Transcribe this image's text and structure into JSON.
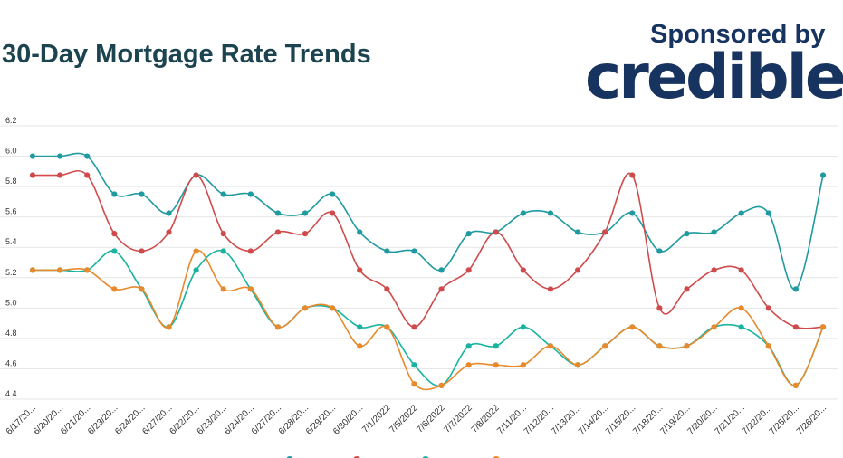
{
  "header": {
    "title": "30-Day Mortgage Rate Trends",
    "sponsor": "Sponsored by",
    "brand": "credible"
  },
  "chart_data": {
    "type": "line",
    "categories": [
      "6/17/20...",
      "6/20/20...",
      "6/21/20...",
      "6/23/20...",
      "6/24/20...",
      "6/27/20...",
      "6/22/20...",
      "6/23/20...",
      "6/24/20...",
      "6/27/20...",
      "6/28/20...",
      "6/29/20...",
      "6/30/20...",
      "7/1/2022",
      "7/5/2022",
      "7/6/2022",
      "7/7/2022",
      "7/8/2022",
      "7/11/20...",
      "7/12/20...",
      "7/13/20...",
      "7/14/20...",
      "7/15/20...",
      "7/18/20...",
      "7/19/20...",
      "7/20/20...",
      "7/21/20...",
      "7/22/20...",
      "7/25/20...",
      "7/26/20..."
    ],
    "ylim": [
      4.4,
      6.2
    ],
    "yticks": [
      "4.4",
      "4.6",
      "4.8",
      "5.0",
      "5.2",
      "5.4",
      "5.6",
      "5.8",
      "6.0",
      "6.2"
    ],
    "grid": true,
    "legend_position": "bottom",
    "series": [
      {
        "color": "#1f9aa0",
        "values": [
          6.0,
          6.0,
          6.0,
          5.75,
          5.75,
          5.625,
          5.875,
          5.75,
          5.75,
          5.625,
          5.625,
          5.75,
          5.5,
          5.375,
          5.375,
          5.25,
          5.49,
          5.5,
          5.625,
          5.625,
          5.5,
          5.5,
          5.625,
          5.375,
          5.49,
          5.5,
          5.625,
          5.625,
          5.125,
          5.875
        ]
      },
      {
        "color": "#cf4b4b",
        "values": [
          5.875,
          5.875,
          5.875,
          5.49,
          5.375,
          5.5,
          5.875,
          5.49,
          5.375,
          5.5,
          5.49,
          5.625,
          5.25,
          5.125,
          4.875,
          5.125,
          5.25,
          5.5,
          5.25,
          5.125,
          5.25,
          5.5,
          5.875,
          5.0,
          5.125,
          5.25,
          5.25,
          5.0,
          4.875,
          4.875
        ]
      },
      {
        "color": "#19b3a0",
        "values": [
          5.25,
          5.25,
          5.25,
          5.375,
          5.125,
          4.875,
          5.25,
          5.375,
          5.125,
          4.875,
          5.0,
          5.0,
          4.875,
          4.875,
          4.625,
          4.49,
          4.75,
          4.75,
          4.875,
          4.75,
          4.625,
          4.75,
          4.875,
          4.75,
          4.75,
          4.875,
          4.875,
          4.75,
          4.49,
          4.875
        ]
      },
      {
        "color": "#e8892b",
        "values": [
          5.25,
          5.25,
          5.25,
          5.125,
          5.125,
          4.875,
          5.375,
          5.125,
          5.125,
          4.875,
          5.0,
          5.0,
          4.75,
          4.875,
          4.5,
          4.49,
          4.625,
          4.625,
          4.625,
          4.75,
          4.625,
          4.75,
          4.875,
          4.75,
          4.75,
          4.875,
          5.0,
          4.75,
          4.49,
          4.875
        ]
      }
    ]
  }
}
